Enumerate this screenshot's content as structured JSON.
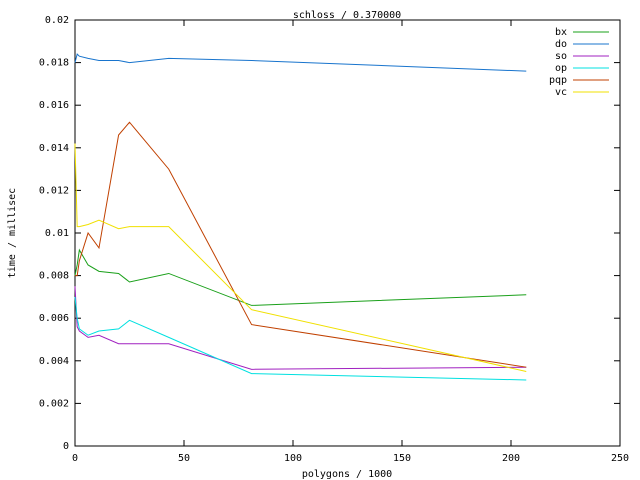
{
  "chart_data": {
    "type": "line",
    "title": "schloss / 0.370000",
    "x_label": "polygons / 1000",
    "y_label": "time / millisec",
    "x": [
      0,
      1,
      2,
      6,
      11,
      20,
      25,
      43,
      81,
      207
    ],
    "series": [
      {
        "name": "bx",
        "color": "#1aa01a",
        "values": [
          0.008,
          0.0085,
          0.0092,
          0.0085,
          0.0082,
          0.0081,
          0.0077,
          0.0081,
          0.0066,
          0.0071
        ]
      },
      {
        "name": "do",
        "color": "#1874cd",
        "values": [
          0.018,
          0.0184,
          0.0183,
          0.0182,
          0.0181,
          0.0181,
          0.018,
          0.0182,
          0.0181,
          0.0176
        ]
      },
      {
        "name": "so",
        "color": "#a020c0",
        "values": [
          0.0075,
          0.0056,
          0.0054,
          0.0051,
          0.0052,
          0.0048,
          0.0048,
          0.0048,
          0.0036,
          0.0037
        ]
      },
      {
        "name": "op",
        "color": "#00e0e0",
        "values": [
          0.007,
          0.006,
          0.0055,
          0.0052,
          0.0054,
          0.0055,
          0.0059,
          0.0051,
          0.0034,
          0.0031
        ]
      },
      {
        "name": "pqp",
        "color": "#c04000",
        "values": [
          0.008,
          0.008,
          0.0087,
          0.01,
          0.0093,
          0.0146,
          0.0152,
          0.013,
          0.0057,
          0.0037
        ]
      },
      {
        "name": "vc",
        "color": "#f0e000",
        "values": [
          0.0142,
          0.0103,
          0.0103,
          0.0104,
          0.0106,
          0.0102,
          0.0103,
          0.0103,
          0.0064,
          0.0035
        ]
      }
    ],
    "xlim": [
      0,
      250
    ],
    "xticks": [
      0,
      50,
      100,
      150,
      200,
      250
    ],
    "ylim": [
      0,
      0.02
    ],
    "yticks": [
      0,
      0.002,
      0.004,
      0.006,
      0.008,
      0.01,
      0.012,
      0.014,
      0.016,
      0.018,
      0.02
    ],
    "grid": false,
    "legend": "top-right"
  }
}
